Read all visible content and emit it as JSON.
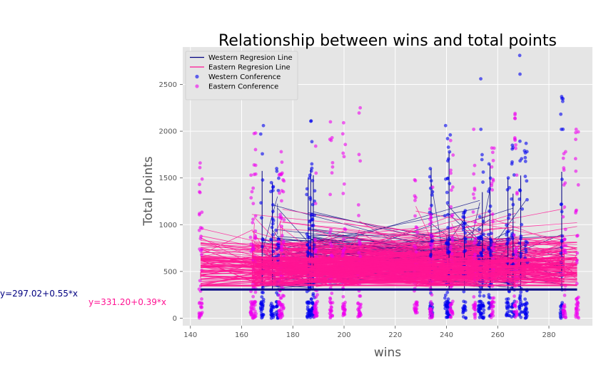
{
  "chart_data": {
    "type": "scatter",
    "title": "Relationship between wins and total points",
    "xlabel": "wins",
    "ylabel": "Total points",
    "xlim": [
      137,
      297
    ],
    "ylim": [
      -80,
      2900
    ],
    "xticks": [
      140,
      160,
      180,
      200,
      220,
      240,
      260,
      280
    ],
    "yticks": [
      0,
      500,
      1000,
      1500,
      2000,
      2500
    ],
    "grid": true,
    "legend_position": "top-left",
    "colors": {
      "western": "#0000ee",
      "western_line": "#000080",
      "eastern": "#ee00ee",
      "eastern_line": "#ff1493",
      "background": "#e5e5e5",
      "grid": "#ffffff"
    },
    "legend": [
      {
        "label": "Western Regresion Line",
        "kind": "line",
        "color": "#000080"
      },
      {
        "label": "Eastern Regresion Line",
        "kind": "line",
        "color": "#ff1493"
      },
      {
        "label": "Western Conference",
        "kind": "point",
        "color": "#0000ee"
      },
      {
        "label": "Eastern Conference",
        "kind": "point",
        "color": "#ee00ee"
      }
    ],
    "annotations": {
      "western_equation": "y=297.02+0.55*x",
      "eastern_equation": "y=331.20+0.39*x"
    },
    "series": [
      {
        "name": "Western Conference",
        "columns": [
          {
            "x": 168,
            "max": 2060
          },
          {
            "x": 172,
            "max": 1450
          },
          {
            "x": 174,
            "max": 1600
          },
          {
            "x": 186,
            "max": 1500
          },
          {
            "x": 187,
            "max": 2110
          },
          {
            "x": 188,
            "max": 1650
          },
          {
            "x": 234,
            "max": 1600
          },
          {
            "x": 240,
            "max": 2060
          },
          {
            "x": 241,
            "max": 1960
          },
          {
            "x": 247,
            "max": 1150
          },
          {
            "x": 253,
            "max": 2560
          },
          {
            "x": 254,
            "max": 2020
          },
          {
            "x": 257,
            "max": 1650
          },
          {
            "x": 264,
            "max": 1500
          },
          {
            "x": 266,
            "max": 1850
          },
          {
            "x": 269,
            "max": 2810
          },
          {
            "x": 271,
            "max": 1870
          },
          {
            "x": 285,
            "max": 2370
          }
        ]
      },
      {
        "name": "Eastern Conference",
        "columns": [
          {
            "x": 144,
            "max": 1660
          },
          {
            "x": 164,
            "max": 1530
          },
          {
            "x": 165,
            "max": 1980
          },
          {
            "x": 175,
            "max": 1540
          },
          {
            "x": 176,
            "max": 1780
          },
          {
            "x": 189,
            "max": 1840
          },
          {
            "x": 195,
            "max": 2100
          },
          {
            "x": 200,
            "max": 2090
          },
          {
            "x": 206,
            "max": 2250
          },
          {
            "x": 228,
            "max": 1480
          },
          {
            "x": 234,
            "max": 1400
          },
          {
            "x": 242,
            "max": 1900
          },
          {
            "x": 251,
            "max": 2020
          },
          {
            "x": 258,
            "max": 1820
          },
          {
            "x": 267,
            "max": 2190
          },
          {
            "x": 286,
            "max": 1780
          },
          {
            "x": 291,
            "max": 2020
          }
        ]
      }
    ],
    "regression_lines": [
      {
        "name": "Western Regresion Line",
        "intercept": 297.02,
        "slope": 0.55
      },
      {
        "name": "Eastern Regresion Line",
        "intercept": 331.2,
        "slope": 0.39
      }
    ]
  }
}
